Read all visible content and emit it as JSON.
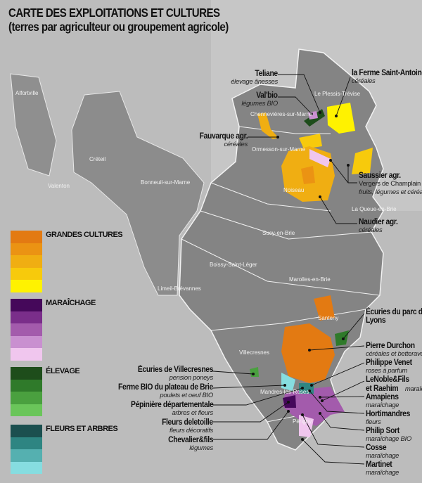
{
  "title": {
    "line1": "CARTE DES EXPLOITATIONS ET CULTURES",
    "line2": "(terres par agriculteur ou groupement agricole)"
  },
  "towns": [
    "Alfortville",
    "Créteil",
    "Valenton",
    "Bonneuil-sur-Marne",
    "Limeil-Brévannes",
    "Boissy-Saint-Léger",
    "Sucy-en-Brie",
    "Marolles-en-Brie",
    "Santeny",
    "Villecresnes",
    "Mandres-les-Roses",
    "Périgny",
    "Chennevières-sur-Marne",
    "Ormesson-sur-Marne",
    "Noiseau",
    "La Queue-en-Brie",
    "Le Plessis-Trévise"
  ],
  "legend": [
    {
      "label": "GRANDES CULTURES",
      "colors": [
        "#e37a12",
        "#eb9313",
        "#f0ae12",
        "#f7ca0c",
        "#fff200"
      ]
    },
    {
      "label": "MARAÎCHAGE",
      "colors": [
        "#45085a",
        "#7a2e8a",
        "#a35bac",
        "#c990d0",
        "#f0c6ee"
      ]
    },
    {
      "label": "ÉLEVAGE",
      "colors": [
        "#1e4d1b",
        "#2f7a2a",
        "#4aa03f",
        "#6ac55a"
      ]
    },
    {
      "label": "FLEURS ET ARBRES",
      "colors": [
        "#1b4f4f",
        "#2e8582",
        "#55b0b0",
        "#86dde0"
      ]
    }
  ],
  "farms": [
    {
      "name": "Teliane",
      "desc": "élevage ânesses"
    },
    {
      "name": "Val'bio",
      "desc": "légumes BIO"
    },
    {
      "name": "la Ferme Saint-Antoine",
      "desc": "céréales"
    },
    {
      "name": "Fauvarque agr.",
      "desc": "céréales"
    },
    {
      "name": "Saussier agr.",
      "desc": "Vergers de Champlain",
      "desc2": "fruits, légumes et céréales"
    },
    {
      "name": "Naudier agr.",
      "desc": "céréales"
    },
    {
      "name": "Écuries du parc des",
      "name2": "Lyons"
    },
    {
      "name": "Pierre Durchon",
      "desc": "céréales et betteraves"
    },
    {
      "name": "Philippe Venet",
      "desc": "roses à parfum"
    },
    {
      "name": "LeNoble&Fils",
      "name2": "et Raehim",
      "desc": "maraîchage"
    },
    {
      "name": "Amapiens",
      "desc": "maraîchage"
    },
    {
      "name": "Hortimandres",
      "desc": "fleurs"
    },
    {
      "name": "Philip Sort",
      "desc": "maraîchage BIO"
    },
    {
      "name": "Cosse",
      "desc": "maraîchage"
    },
    {
      "name": "Martinet",
      "desc": "maraîchage"
    },
    {
      "name": "Écuries de Villecresnes",
      "desc": "pension poneys"
    },
    {
      "name": "Ferme BIO du plateau de Brie",
      "desc": "poulets et oeuf BIO"
    },
    {
      "name": "Pépinière départementale",
      "desc": "arbres et fleurs"
    },
    {
      "name": "Fleurs deletoille",
      "desc": "fleurs décoratifs"
    },
    {
      "name": "Chevalier&fils",
      "desc": "légumes"
    }
  ]
}
